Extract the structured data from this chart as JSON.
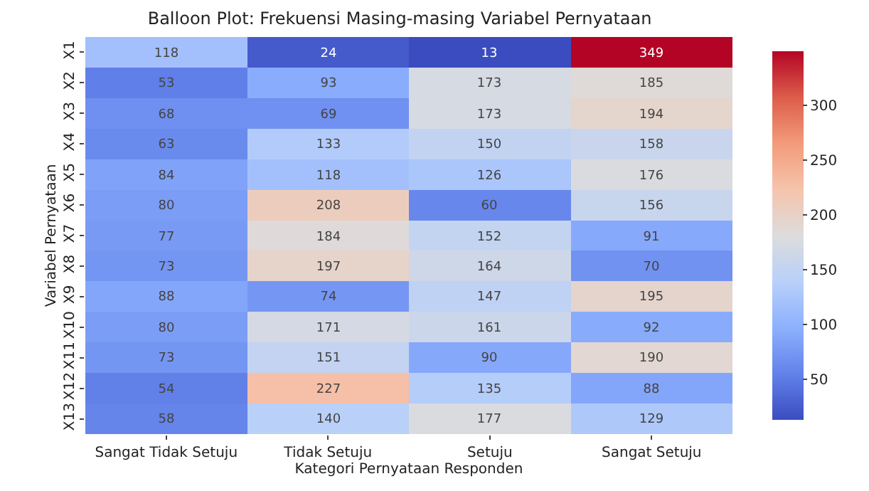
{
  "chart_data": {
    "type": "heatmap",
    "title": "Balloon Plot: Frekuensi Masing-masing Variabel Pernyataan",
    "xlabel": "Kategori Pernyataan Responden",
    "ylabel": "Variabel Pernyataan",
    "categories": [
      "Sangat Tidak Setuju",
      "Tidak Setuju",
      "Setuju",
      "Sangat Setuju"
    ],
    "y_categories": [
      "X1",
      "X2",
      "X3",
      "X4",
      "X5",
      "X6",
      "X7",
      "X8",
      "X9",
      "X10",
      "X11",
      "X12",
      "X13"
    ],
    "cells": [
      [
        118,
        24,
        13,
        349
      ],
      [
        53,
        93,
        173,
        185
      ],
      [
        68,
        69,
        173,
        194
      ],
      [
        63,
        133,
        150,
        158
      ],
      [
        84,
        118,
        126,
        176
      ],
      [
        80,
        208,
        60,
        156
      ],
      [
        77,
        184,
        152,
        91
      ],
      [
        73,
        197,
        164,
        70
      ],
      [
        88,
        74,
        147,
        195
      ],
      [
        80,
        171,
        161,
        92
      ],
      [
        73,
        151,
        90,
        190
      ],
      [
        54,
        227,
        135,
        88
      ],
      [
        58,
        140,
        177,
        129
      ]
    ],
    "clim": [
      13,
      349
    ],
    "cticks": [
      50,
      100,
      150,
      200,
      250,
      300
    ],
    "data_labels": true
  }
}
